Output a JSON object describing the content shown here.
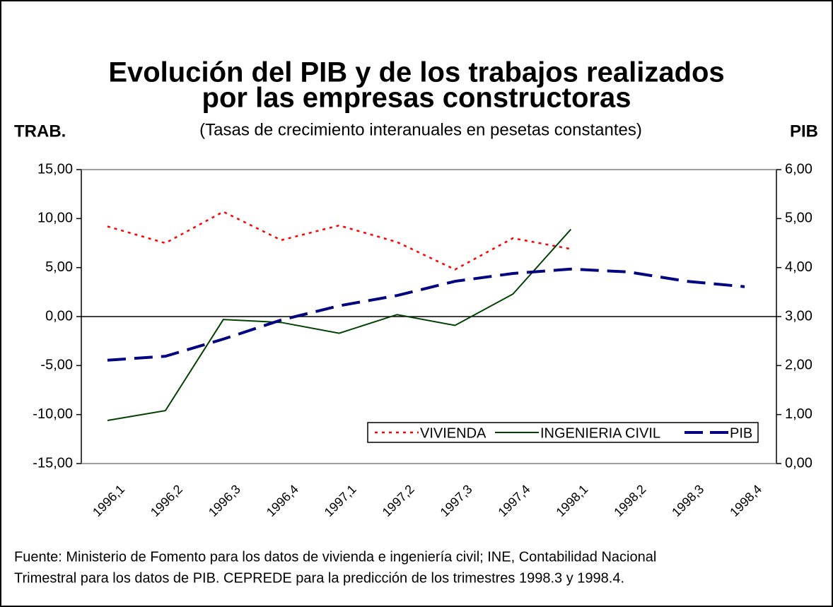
{
  "chart_data": {
    "type": "line",
    "title": [
      "Evolución del PIB y de los trabajos realizados",
      "por las empresas constructoras"
    ],
    "subtitle": "(Tasas de crecimiento interanuales en pesetas constantes)",
    "y_label": "TRAB.",
    "y2_label": "PIB",
    "categories": [
      "1996,1",
      "1996,2",
      "1996,3",
      "1996,4",
      "1997,1",
      "1997,2",
      "1997,3",
      "1997,4",
      "1998,1",
      "1998,2",
      "1998,3",
      "1998,4"
    ],
    "series": [
      {
        "name": "VIVIENDA",
        "color": "#ff0000",
        "style": "dotted",
        "values": [
          9.2,
          7.5,
          10.7,
          7.8,
          9.3,
          7.6,
          4.8,
          8.0,
          6.9,
          null,
          null,
          null
        ]
      },
      {
        "name": "INGENIERIA CIVIL",
        "color": "#004000",
        "style": "solid",
        "values": [
          -10.6,
          -9.6,
          -0.3,
          -0.6,
          -1.7,
          0.2,
          -0.9,
          2.3,
          8.9,
          null,
          null,
          null
        ]
      },
      {
        "name": "PIB",
        "color": "#000080",
        "style": "dashed",
        "axis": "y2",
        "values": [
          2.11,
          2.19,
          2.54,
          2.93,
          3.22,
          3.43,
          3.72,
          3.88,
          3.97,
          3.91,
          3.72,
          3.61
        ]
      }
    ],
    "ylim": [
      -15,
      15
    ],
    "yticks": [
      {
        "value": -15,
        "label": "-15,00"
      },
      {
        "value": -10,
        "label": "-10,00"
      },
      {
        "value": -5,
        "label": "-5,00"
      },
      {
        "value": 0,
        "label": "0,00"
      },
      {
        "value": 5,
        "label": "5,00"
      },
      {
        "value": 10,
        "label": "10,00"
      },
      {
        "value": 15,
        "label": "15,00"
      }
    ],
    "y2lim": [
      0,
      6
    ],
    "y2ticks": [
      {
        "value": 0,
        "label": "0,00"
      },
      {
        "value": 1,
        "label": "1,00"
      },
      {
        "value": 2,
        "label": "2,00"
      },
      {
        "value": 3,
        "label": "3,00"
      },
      {
        "value": 4,
        "label": "4,00"
      },
      {
        "value": 5,
        "label": "5,00"
      },
      {
        "value": 6,
        "label": "6,00"
      }
    ],
    "legend": "bottom-right",
    "note": [
      "Fuente: Ministerio de Fomento para los datos de vivienda e ingeniería civil; INE, Contabilidad Nacional",
      "Trimestral para los datos de PIB. CEPREDE para la predicción de los trimestres 1998.3 y 1998.4."
    ]
  }
}
